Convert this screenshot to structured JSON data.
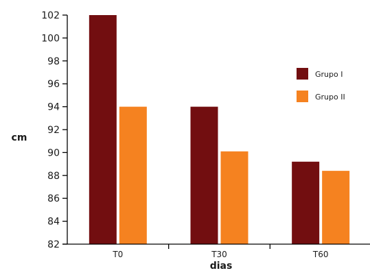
{
  "chart_data": {
    "type": "bar",
    "title": "",
    "xlabel": "dias",
    "ylabel": "cm",
    "ylim": [
      82,
      102
    ],
    "yticks": [
      82,
      84,
      86,
      88,
      90,
      92,
      94,
      96,
      98,
      100,
      102
    ],
    "categories": [
      "T0",
      "T30",
      "T60"
    ],
    "series": [
      {
        "name": "Grupo I",
        "values": [
          102,
          94,
          89.2
        ],
        "color": "#720e10"
      },
      {
        "name": "Grupo II",
        "values": [
          94,
          90.1,
          88.4
        ],
        "color": "#f58220"
      }
    ],
    "grid": false,
    "legend_position": "right"
  }
}
